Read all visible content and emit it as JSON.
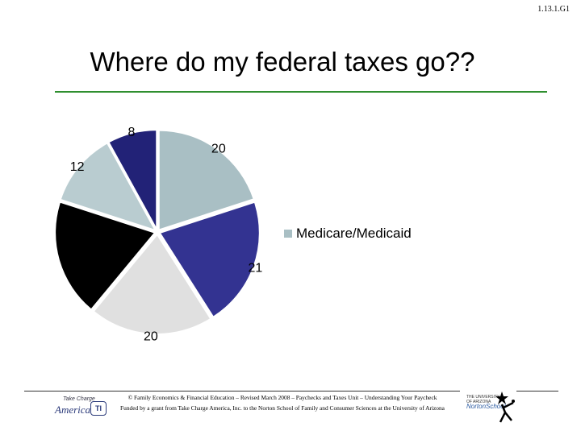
{
  "slide_id": "1.13.1.G1",
  "title": "Where do my federal taxes go??",
  "chart_data": {
    "type": "pie",
    "slices": [
      {
        "value": 20,
        "label": "20",
        "color": "#a9bfc4"
      },
      {
        "value": 21,
        "label": "21",
        "color": "#333391"
      },
      {
        "value": 20,
        "label": "20",
        "color": "#e0e0e0"
      },
      {
        "value": 19,
        "label": "",
        "color": "#000000"
      },
      {
        "value": 12,
        "label": "12",
        "color": "#b9ccd0"
      },
      {
        "value": 8,
        "label": "8",
        "color": "#222277"
      }
    ],
    "legend": [
      {
        "label": "Medicare/Medicaid",
        "color": "#a9bfc4"
      }
    ],
    "legend_position": "right"
  },
  "footer": {
    "line1": "© Family Economics & Financial Education – Revised March 2008 – Paychecks and Taxes Unit – Understanding Your Paycheck",
    "line2": "Funded by a grant from Take Charge America, Inc. to the Norton School of Family and Consumer Sciences at the University of Arizona"
  },
  "logos": {
    "left_top": "Take Charge",
    "left_main": "America",
    "left_badge": "TI",
    "right_top": "THE UNIVERSITY OF ARIZONA",
    "right_mark": "NortonSchool"
  }
}
